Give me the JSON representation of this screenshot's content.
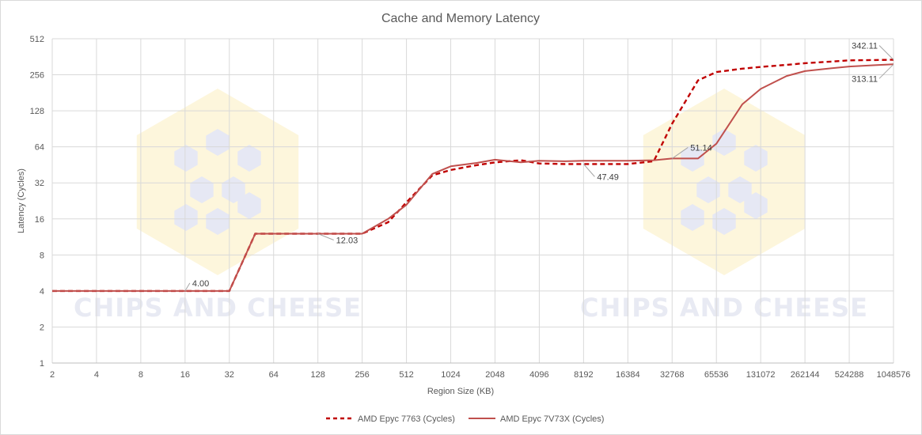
{
  "chart_data": {
    "type": "line",
    "title": "Cache and Memory Latency",
    "xlabel": "Region Size (KB)",
    "ylabel": "Latency (Cycles)",
    "x_scale": "log2",
    "y_scale": "log2",
    "xlim": [
      2,
      1048576
    ],
    "ylim": [
      1,
      512
    ],
    "x_ticks": [
      "2",
      "4",
      "8",
      "16",
      "32",
      "64",
      "128",
      "256",
      "512",
      "1024",
      "2048",
      "4096",
      "8192",
      "16384",
      "32768",
      "65536",
      "131072",
      "262144",
      "524288",
      "1048576"
    ],
    "y_ticks": [
      "1",
      "2",
      "4",
      "8",
      "16",
      "32",
      "64",
      "128",
      "256",
      "512"
    ],
    "grid": true,
    "legend_position": "bottom",
    "watermark": "CHIPS AND CHEESE",
    "series": [
      {
        "name": "AMD Epyc 7763 (Cycles)",
        "color": "#c00000",
        "style": "dashed",
        "points": [
          [
            2,
            4.0
          ],
          [
            4,
            4.0
          ],
          [
            8,
            4.0
          ],
          [
            16,
            4.0
          ],
          [
            24,
            4.0
          ],
          [
            32,
            4.0
          ],
          [
            48,
            12.03
          ],
          [
            64,
            12.03
          ],
          [
            96,
            12.03
          ],
          [
            128,
            12.03
          ],
          [
            192,
            12.03
          ],
          [
            256,
            12.03
          ],
          [
            384,
            15.0
          ],
          [
            512,
            22.0
          ],
          [
            768,
            37.0
          ],
          [
            1024,
            41.0
          ],
          [
            1536,
            45.0
          ],
          [
            2048,
            47.5
          ],
          [
            3072,
            49.5
          ],
          [
            4096,
            46.5
          ],
          [
            6144,
            46.0
          ],
          [
            8192,
            46.0
          ],
          [
            12288,
            46.0
          ],
          [
            16384,
            46.0
          ],
          [
            24576,
            48.5
          ],
          [
            32768,
            100.0
          ],
          [
            49152,
            230.0
          ],
          [
            65536,
            270.0
          ],
          [
            98304,
            288.0
          ],
          [
            131072,
            298.0
          ],
          [
            196608,
            310.0
          ],
          [
            262144,
            320.0
          ],
          [
            393216,
            330.0
          ],
          [
            524288,
            338.0
          ],
          [
            786432,
            340.0
          ],
          [
            1048576,
            342.11
          ]
        ]
      },
      {
        "name": "AMD Epyc 7V73X (Cycles)",
        "color": "#c0504d",
        "style": "solid",
        "points": [
          [
            2,
            4.0
          ],
          [
            4,
            4.0
          ],
          [
            8,
            4.0
          ],
          [
            16,
            4.0
          ],
          [
            24,
            4.0
          ],
          [
            32,
            4.0
          ],
          [
            48,
            12.03
          ],
          [
            64,
            12.03
          ],
          [
            96,
            12.03
          ],
          [
            128,
            12.03
          ],
          [
            192,
            12.03
          ],
          [
            256,
            12.03
          ],
          [
            384,
            16.0
          ],
          [
            512,
            21.0
          ],
          [
            768,
            38.0
          ],
          [
            1024,
            44.0
          ],
          [
            1536,
            47.0
          ],
          [
            2048,
            50.0
          ],
          [
            3072,
            47.5
          ],
          [
            4096,
            49.0
          ],
          [
            6144,
            48.5
          ],
          [
            8192,
            49.0
          ],
          [
            12288,
            49.0
          ],
          [
            16384,
            49.0
          ],
          [
            24576,
            49.5
          ],
          [
            32768,
            51.14
          ],
          [
            49152,
            51.14
          ],
          [
            65536,
            68.0
          ],
          [
            98304,
            145.0
          ],
          [
            131072,
            195.0
          ],
          [
            196608,
            250.0
          ],
          [
            262144,
            275.0
          ],
          [
            393216,
            290.0
          ],
          [
            524288,
            300.0
          ],
          [
            786432,
            308.0
          ],
          [
            1048576,
            313.11
          ]
        ]
      }
    ],
    "annotations": [
      {
        "text": "4.00",
        "x": 16,
        "y": 4.0
      },
      {
        "text": "12.03",
        "x": 128,
        "y": 12.03
      },
      {
        "text": "47.49",
        "x": 8192,
        "y": 46.0
      },
      {
        "text": "51.14",
        "x": 32768,
        "y": 51.14
      },
      {
        "text": "342.11",
        "x": 1048576,
        "y": 342.11
      },
      {
        "text": "313.11",
        "x": 1048576,
        "y": 313.11
      }
    ]
  }
}
